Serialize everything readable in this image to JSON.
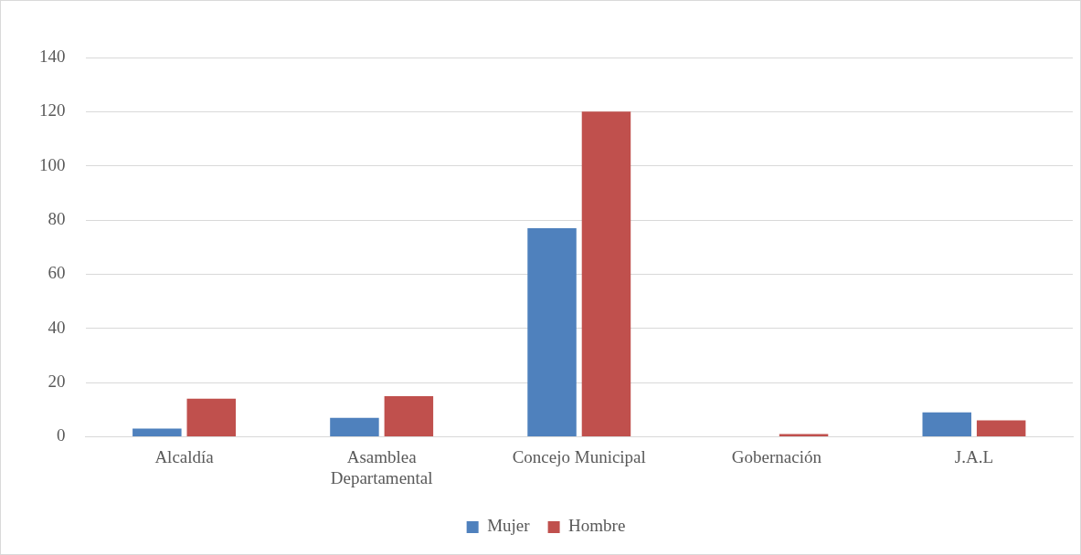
{
  "chart_data": {
    "type": "bar",
    "categories": [
      "Alcaldía",
      "Asamblea Departamental",
      "Concejo Municipal",
      "Gobernación",
      "J.A.L"
    ],
    "series": [
      {
        "name": "Mujer",
        "color": "#4f81bd",
        "values": [
          3,
          7,
          77,
          0,
          9
        ]
      },
      {
        "name": "Hombre",
        "color": "#c0504d",
        "values": [
          14,
          15,
          120,
          1,
          6
        ]
      }
    ],
    "ylim": [
      0,
      140
    ],
    "yticks": [
      0,
      20,
      40,
      60,
      80,
      100,
      120,
      140
    ],
    "grid": "y",
    "legend": "bottom"
  }
}
